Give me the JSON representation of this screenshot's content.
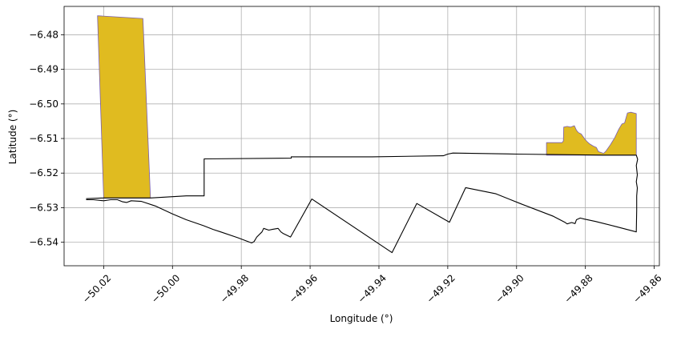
{
  "chart_data": {
    "type": "map",
    "title": "",
    "xlabel": "Longitude (°)",
    "ylabel": "Latitude (°)",
    "xlim": [
      -50.0315,
      -49.8585
    ],
    "ylim": [
      -6.5468,
      -6.4718
    ],
    "x_ticks": [
      -50.02,
      -50.0,
      -49.98,
      -49.96,
      -49.94,
      -49.92,
      -49.9,
      -49.88,
      -49.86
    ],
    "x_tick_labels": [
      "−50.02",
      "−50.00",
      "−49.98",
      "−49.96",
      "−49.94",
      "−49.92",
      "−49.90",
      "−49.88",
      "−49.86"
    ],
    "y_ticks": [
      -6.48,
      -6.49,
      -6.5,
      -6.51,
      -6.52,
      -6.53,
      -6.54
    ],
    "y_tick_labels": [
      "−6.48",
      "−6.49",
      "−6.50",
      "−6.51",
      "−6.52",
      "−6.53",
      "−6.54"
    ],
    "grid": true,
    "colors": {
      "fill": "#e0bb20",
      "fill_edge": "#7a5fb0",
      "outline": "#000000",
      "grid": "#b0b0b0"
    },
    "filled_polygons": [
      {
        "points": [
          [
            -50.0218,
            -6.4745
          ],
          [
            -50.0086,
            -6.4753
          ],
          [
            -50.0064,
            -6.5272
          ],
          [
            -50.02,
            -6.5272
          ],
          [
            -50.0218,
            -6.4745
          ]
        ]
      },
      {
        "points": [
          [
            -49.8913,
            -6.5112
          ],
          [
            -49.8868,
            -6.5112
          ],
          [
            -49.8864,
            -6.5107
          ],
          [
            -49.8863,
            -6.5067
          ],
          [
            -49.8853,
            -6.5065
          ],
          [
            -49.8843,
            -6.5067
          ],
          [
            -49.8832,
            -6.5063
          ],
          [
            -49.8826,
            -6.5076
          ],
          [
            -49.882,
            -6.5083
          ],
          [
            -49.8812,
            -6.5087
          ],
          [
            -49.8803,
            -6.51
          ],
          [
            -49.8796,
            -6.5108
          ],
          [
            -49.8787,
            -6.5116
          ],
          [
            -49.8777,
            -6.5122
          ],
          [
            -49.8768,
            -6.5126
          ],
          [
            -49.8762,
            -6.5138
          ],
          [
            -49.8747,
            -6.5143
          ],
          [
            -49.874,
            -6.5136
          ],
          [
            -49.8728,
            -6.5119
          ],
          [
            -49.8715,
            -6.5098
          ],
          [
            -49.8703,
            -6.5073
          ],
          [
            -49.8694,
            -6.5058
          ],
          [
            -49.8686,
            -6.5055
          ],
          [
            -49.8678,
            -6.5026
          ],
          [
            -49.8668,
            -6.5024
          ],
          [
            -49.8652,
            -6.5028
          ],
          [
            -49.8652,
            -6.5148
          ],
          [
            -49.8913,
            -6.5148
          ],
          [
            -49.8913,
            -6.5112
          ]
        ]
      }
    ],
    "outline": {
      "points": [
        [
          -50.0251,
          -6.5274
        ],
        [
          -50.02,
          -6.5272
        ],
        [
          -50.0064,
          -6.5272
        ],
        [
          -49.996,
          -6.5266
        ],
        [
          -49.9908,
          -6.5266
        ],
        [
          -49.9908,
          -6.5159
        ],
        [
          -49.9655,
          -6.5157
        ],
        [
          -49.9655,
          -6.5153
        ],
        [
          -49.963,
          -6.5153
        ],
        [
          -49.942,
          -6.5153
        ],
        [
          -49.9213,
          -6.515
        ],
        [
          -49.92,
          -6.5145
        ],
        [
          -49.9185,
          -6.5142
        ],
        [
          -49.9,
          -6.5145
        ],
        [
          -49.875,
          -6.5148
        ],
        [
          -49.8652,
          -6.5148
        ],
        [
          -49.8648,
          -6.516
        ],
        [
          -49.8652,
          -6.5178
        ],
        [
          -49.8649,
          -6.5205
        ],
        [
          -49.8652,
          -6.5225
        ],
        [
          -49.8649,
          -6.5243
        ],
        [
          -49.8651,
          -6.5266
        ],
        [
          -49.8651,
          -6.5308
        ],
        [
          -49.8652,
          -6.537
        ],
        [
          -49.871,
          -6.5355
        ],
        [
          -49.877,
          -6.534
        ],
        [
          -49.8803,
          -6.5333
        ],
        [
          -49.8815,
          -6.533
        ],
        [
          -49.8826,
          -6.5335
        ],
        [
          -49.883,
          -6.5346
        ],
        [
          -49.884,
          -6.5343
        ],
        [
          -49.8853,
          -6.5347
        ],
        [
          -49.886,
          -6.5342
        ],
        [
          -49.8893,
          -6.5325
        ],
        [
          -49.899,
          -6.5288
        ],
        [
          -49.906,
          -6.526
        ],
        [
          -49.9148,
          -6.5242
        ],
        [
          -49.9195,
          -6.5342
        ],
        [
          -49.929,
          -6.5288
        ],
        [
          -49.9362,
          -6.543
        ],
        [
          -49.9595,
          -6.5275
        ],
        [
          -49.9657,
          -6.5385
        ],
        [
          -49.9678,
          -6.5375
        ],
        [
          -49.9685,
          -6.537
        ],
        [
          -49.9693,
          -6.536
        ],
        [
          -49.971,
          -6.5363
        ],
        [
          -49.972,
          -6.5365
        ],
        [
          -49.9735,
          -6.536
        ],
        [
          -49.974,
          -6.537
        ],
        [
          -49.9755,
          -6.5385
        ],
        [
          -49.9763,
          -6.5398
        ],
        [
          -49.977,
          -6.5402
        ],
        [
          -49.981,
          -6.5387
        ],
        [
          -49.986,
          -6.537
        ],
        [
          -49.9882,
          -6.5363
        ],
        [
          -49.991,
          -6.5352
        ],
        [
          -49.996,
          -6.5335
        ],
        [
          -50.0,
          -6.5318
        ],
        [
          -50.005,
          -6.5295
        ],
        [
          -50.009,
          -6.5282
        ],
        [
          -50.012,
          -6.528
        ],
        [
          -50.0133,
          -6.5285
        ],
        [
          -50.0145,
          -6.5283
        ],
        [
          -50.016,
          -6.5277
        ],
        [
          -50.018,
          -6.5277
        ],
        [
          -50.02,
          -6.528
        ],
        [
          -50.023,
          -6.5277
        ],
        [
          -50.0251,
          -6.5277
        ]
      ]
    }
  }
}
